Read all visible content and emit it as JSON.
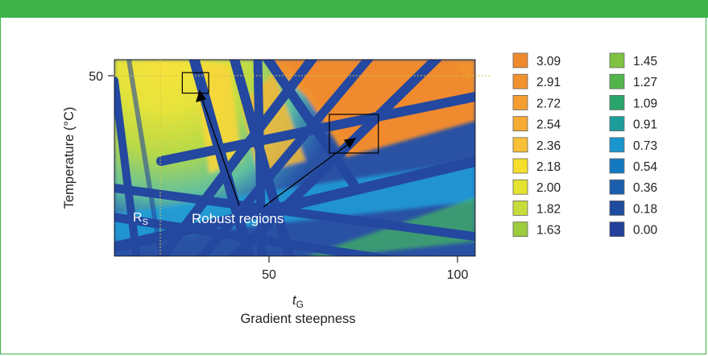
{
  "chart_data": {
    "type": "heatmap",
    "xlabel_symbol": "t",
    "xlabel_subscript": "G",
    "xlabel": "Gradient steepness",
    "ylabel": "Temperature (°C)",
    "x_ticks": [
      50,
      100
    ],
    "y_ticks": [
      50
    ],
    "xlim": [
      10,
      106
    ],
    "marker_label": "R",
    "marker_subscript": "S",
    "annotation": "Robust regions",
    "robust_regions": [
      {
        "x": [
          27,
          34
        ],
        "y": [
          45.5,
          50.8
        ]
      },
      {
        "x": [
          66,
          79
        ],
        "y": [
          30,
          40
        ]
      }
    ],
    "legend": [
      {
        "label": "3.09",
        "color": "#f08a2e"
      },
      {
        "label": "2.91",
        "color": "#f2922f"
      },
      {
        "label": "2.72",
        "color": "#f49d31"
      },
      {
        "label": "2.54",
        "color": "#f6ab35"
      },
      {
        "label": "2.36",
        "color": "#f8c037"
      },
      {
        "label": "2.18",
        "color": "#f7de2c"
      },
      {
        "label": "2.00",
        "color": "#e4e330"
      },
      {
        "label": "1.82",
        "color": "#c7db3b"
      },
      {
        "label": "1.63",
        "color": "#9ccb3d"
      },
      {
        "label": "1.45",
        "color": "#7fc241"
      },
      {
        "label": "1.27",
        "color": "#52b54c"
      },
      {
        "label": "1.09",
        "color": "#2aa56a"
      },
      {
        "label": "0.91",
        "color": "#1c9d9b"
      },
      {
        "label": "0.73",
        "color": "#1a96cf"
      },
      {
        "label": "0.54",
        "color": "#1479c3"
      },
      {
        "label": "0.36",
        "color": "#1a5fae"
      },
      {
        "label": "0.18",
        "color": "#1e4c9e"
      },
      {
        "label": "0.00",
        "color": "#23409a"
      }
    ]
  }
}
